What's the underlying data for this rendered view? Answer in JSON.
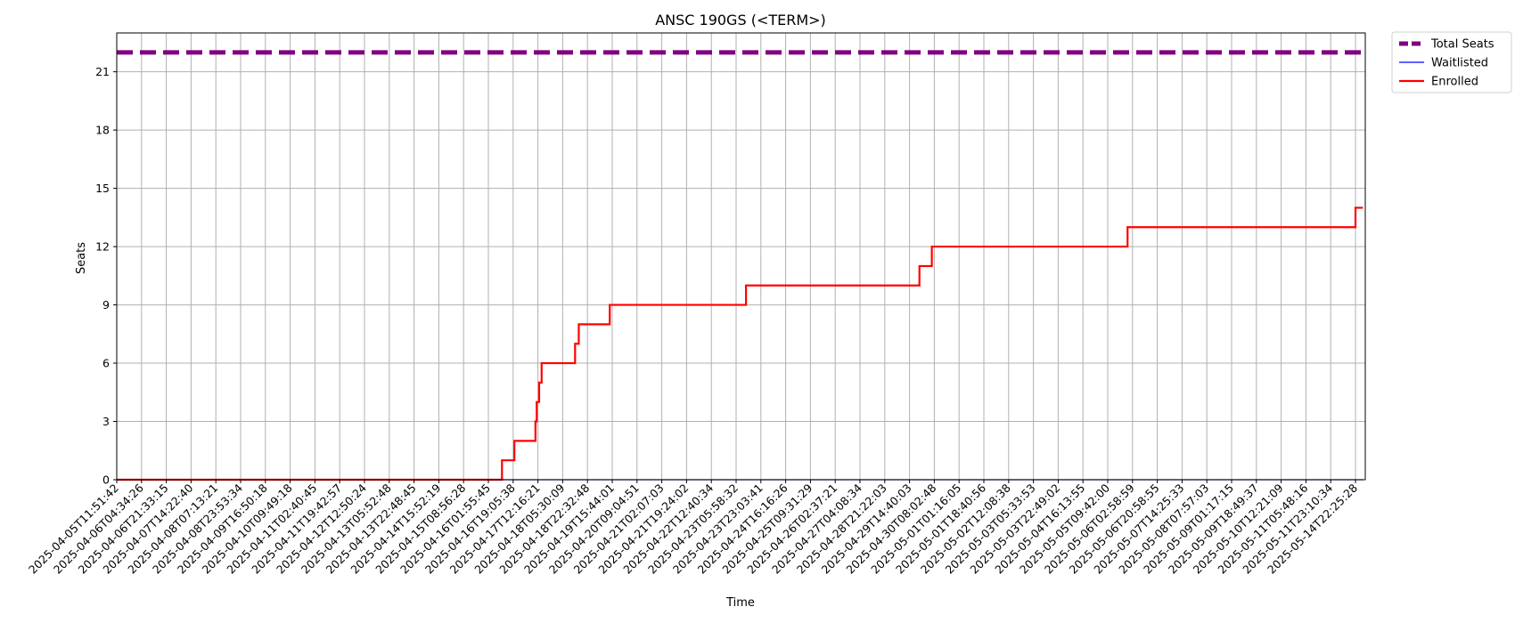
{
  "chart_data": {
    "type": "line",
    "title": "ANSC 190GS (<TERM>)",
    "xlabel": "Time",
    "ylabel": "Seats",
    "ylim": [
      0,
      23
    ],
    "yticks": [
      0,
      3,
      6,
      9,
      12,
      15,
      18,
      21
    ],
    "grid": true,
    "legend_position": "outside-top-right",
    "x_tick_labels": [
      "2025-04-05T11:51:42",
      "2025-04-06T04:34:26",
      "2025-04-06T21:33:15",
      "2025-04-07T14:22:40",
      "2025-04-08T07:13:21",
      "2025-04-08T23:53:34",
      "2025-04-09T16:50:18",
      "2025-04-10T09:49:18",
      "2025-04-11T02:40:45",
      "2025-04-11T19:42:57",
      "2025-04-12T12:50:24",
      "2025-04-13T05:52:48",
      "2025-04-13T22:48:45",
      "2025-04-14T15:52:19",
      "2025-04-15T08:56:28",
      "2025-04-16T01:55:45",
      "2025-04-16T19:05:38",
      "2025-04-17T12:16:21",
      "2025-04-18T05:30:09",
      "2025-04-18T22:32:48",
      "2025-04-19T15:44:01",
      "2025-04-20T09:04:51",
      "2025-04-21T02:07:03",
      "2025-04-21T19:24:02",
      "2025-04-22T12:40:34",
      "2025-04-23T05:58:32",
      "2025-04-23T23:03:41",
      "2025-04-24T16:16:26",
      "2025-04-25T09:31:29",
      "2025-04-26T02:37:21",
      "2025-04-27T04:08:34",
      "2025-04-28T21:22:03",
      "2025-04-29T14:40:03",
      "2025-04-30T08:02:48",
      "2025-05-01T01:16:05",
      "2025-05-01T18:40:56",
      "2025-05-02T12:08:38",
      "2025-05-03T05:33:53",
      "2025-05-03T22:49:02",
      "2025-05-04T16:13:55",
      "2025-05-05T09:42:00",
      "2025-05-06T02:58:59",
      "2025-05-06T20:58:55",
      "2025-05-07T14:25:33",
      "2025-05-08T07:57:03",
      "2025-05-09T01:17:15",
      "2025-05-09T18:49:37",
      "2025-05-10T12:21:09",
      "2025-05-11T05:48:16",
      "2025-05-11T23:10:34",
      "2025-05-14T22:25:28"
    ],
    "series": [
      {
        "name": "Total Seats",
        "color": "#800080",
        "style": "dashed",
        "x_index": [
          0,
          50.3
        ],
        "values": [
          22,
          22
        ]
      },
      {
        "name": "Waitlisted",
        "color": "#0000ff",
        "style": "solid",
        "x_index": [
          0,
          50.3
        ],
        "values": [
          0,
          0
        ]
      },
      {
        "name": "Enrolled",
        "color": "#ff0000",
        "style": "step",
        "x_index": [
          0,
          15.55,
          16.05,
          16.9,
          16.95,
          17.05,
          17.15,
          18.5,
          18.65,
          19.9,
          25.4,
          32.4,
          32.9,
          40.8,
          50.0,
          50.3
        ],
        "values": [
          0,
          1,
          2,
          3,
          4,
          5,
          6,
          7,
          8,
          9,
          10,
          11,
          12,
          13,
          14,
          14
        ]
      }
    ]
  }
}
